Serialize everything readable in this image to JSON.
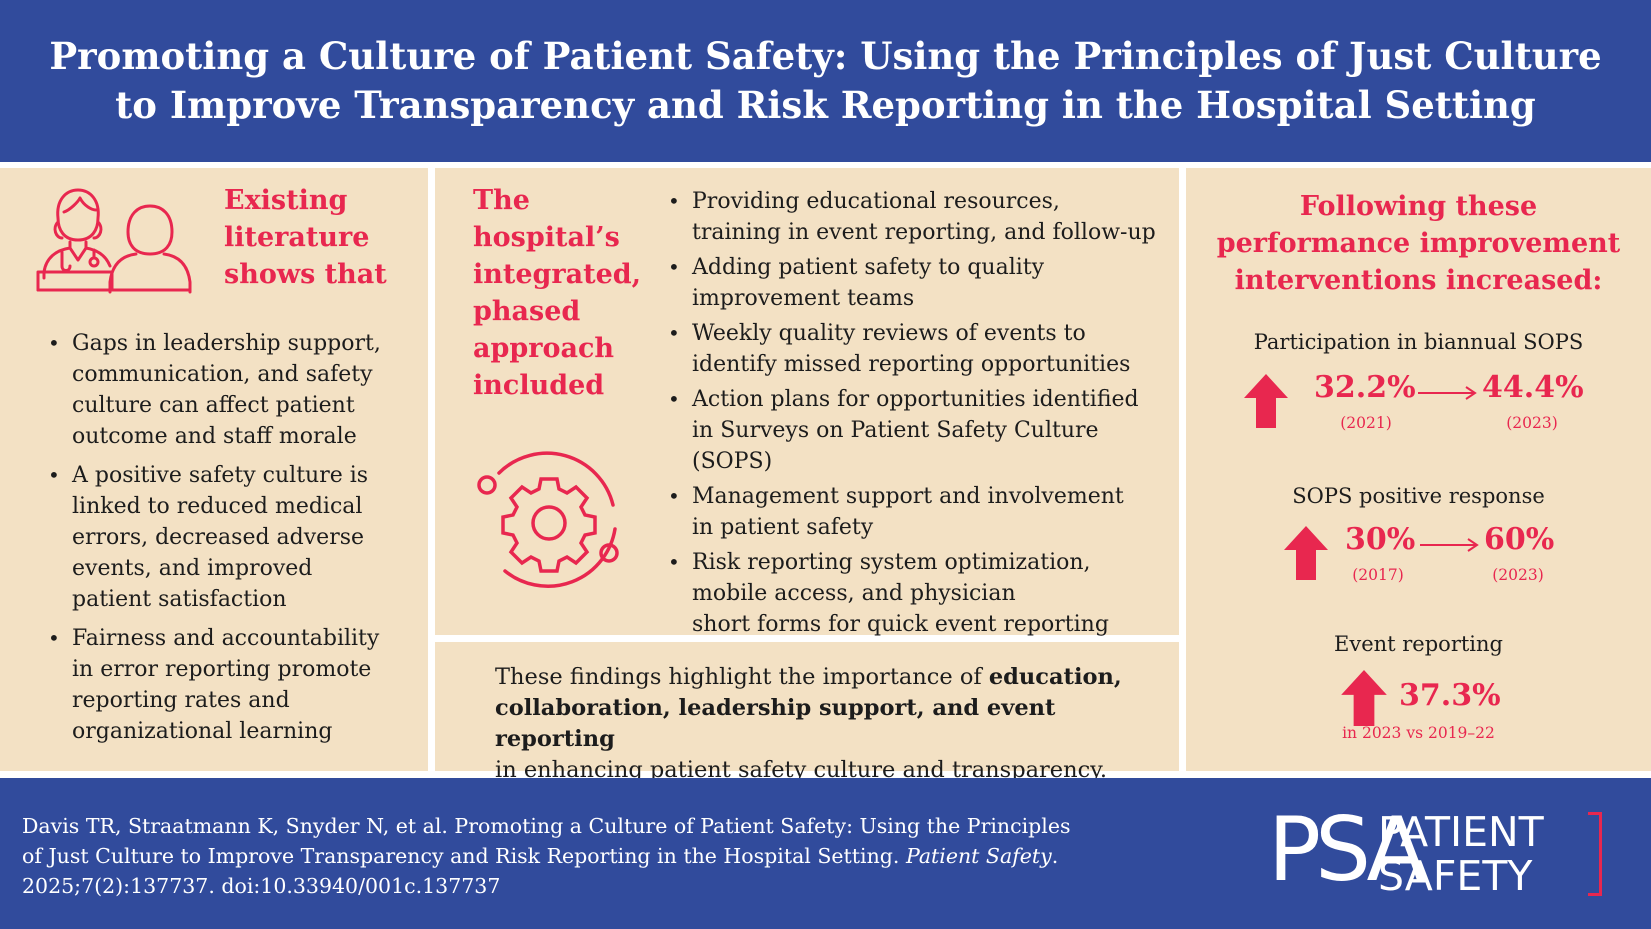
{
  "header": {
    "title": "Promoting a Culture of Patient Safety: Using the Principles of Just Culture to Improve Transparency and Risk Reporting in the Hospital Setting"
  },
  "left_panel": {
    "icon": "doctor-patient-icon",
    "heading_lines": [
      "Existing",
      "literature",
      "shows that"
    ],
    "bullets": [
      [
        "Gaps in leadership support,",
        "communication, and safety",
        "culture can affect patient",
        "outcome and staff morale"
      ],
      [
        "A positive safety culture is",
        "linked to reduced medical",
        "errors, decreased adverse",
        "events, and improved",
        "patient satisfaction"
      ],
      [
        "Fairness and accountability",
        "in error reporting promote",
        "reporting rates and",
        "organizational learning"
      ]
    ]
  },
  "middle_panel": {
    "icon": "gear-cycle-icon",
    "heading_lines": [
      "The",
      "hospital’s",
      "integrated,",
      "phased",
      "approach",
      "included"
    ],
    "bullets": [
      [
        "Providing educational resources,",
        "training in event reporting, and follow-up"
      ],
      [
        "Adding patient safety to quality",
        "improvement teams"
      ],
      [
        "Weekly quality reviews of events to",
        "identify missed reporting opportunities"
      ],
      [
        "Action plans for opportunities identified",
        "in Surveys on Patient Safety Culture (SOPS)"
      ],
      [
        "Management support and involvement",
        "in patient safety"
      ],
      [
        "Risk reporting system optimization,",
        "mobile access, and physician",
        "short forms for quick event reporting"
      ]
    ],
    "findings": {
      "line1_plain": "These findings highlight the importance of ",
      "line1_bold": "education,",
      "line2_bold": "collaboration, leadership support, and event reporting",
      "line3_plain": "in enhancing patient safety culture and transparency."
    }
  },
  "right_panel": {
    "title_lines": [
      "Following these",
      "performance improvement",
      "interventions increased:"
    ],
    "stats": [
      {
        "label": "Participation in biannual SOPS",
        "from": "32.2%",
        "from_year": "(2021)",
        "to": "44.4%",
        "to_year": "(2023)"
      },
      {
        "label": "SOPS positive response",
        "from": "30%",
        "from_year": "(2017)",
        "to": "60%",
        "to_year": "(2023)"
      }
    ],
    "event": {
      "label": "Event reporting",
      "value": "37.3%",
      "note": "in 2023 vs 2019–22"
    },
    "icons": {
      "increase": "arrow-up-icon",
      "change": "arrow-right-icon"
    }
  },
  "footer": {
    "citation_line1": "Davis TR, Straatmann K, Snyder N, et al. Promoting a Culture of Patient Safety: Using the Principles",
    "citation_line2_plain": "of Just Culture to Improve Transparency and Risk Reporting in the Hospital Setting. ",
    "citation_line2_italic": "Patient Safety",
    "citation_line2_end": ".",
    "citation_line3": "2025;7(2):137737. doi:10.33940/001c.137737",
    "logo_mark": "PSA",
    "logo_word1": "PATIENT",
    "logo_word2": "SAFETY"
  },
  "colors": {
    "navy": "#314b9c",
    "beige": "#f3e1c4",
    "accent": "#e8274f"
  }
}
